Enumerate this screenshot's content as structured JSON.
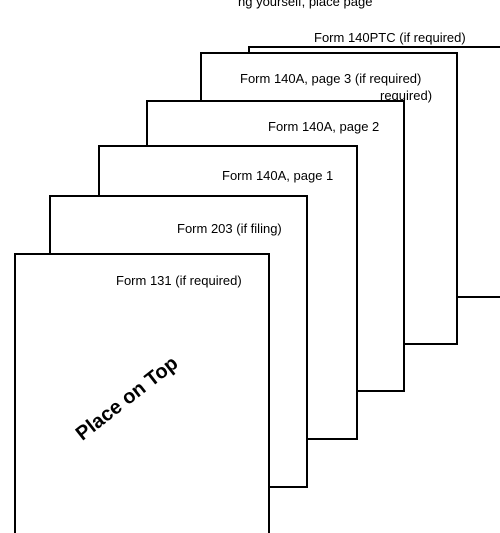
{
  "fragment_top": "ng yourself, place page",
  "sheets": [
    {
      "id": "form-140ptc",
      "label": "Form 140PTC (if required)"
    },
    {
      "id": "form-140a-p3",
      "label": "Form 140A, page 3 (if required)",
      "overflow_text": "required)"
    },
    {
      "id": "form-140a-p2",
      "label": "Form 140A, page 2"
    },
    {
      "id": "form-140a-p1",
      "label": "Form 140A, page 1"
    },
    {
      "id": "form-203",
      "label": "Form 203 (if filing)"
    },
    {
      "id": "form-131",
      "label": "Form 131 (if required)",
      "stamp": "Place on Top"
    }
  ]
}
